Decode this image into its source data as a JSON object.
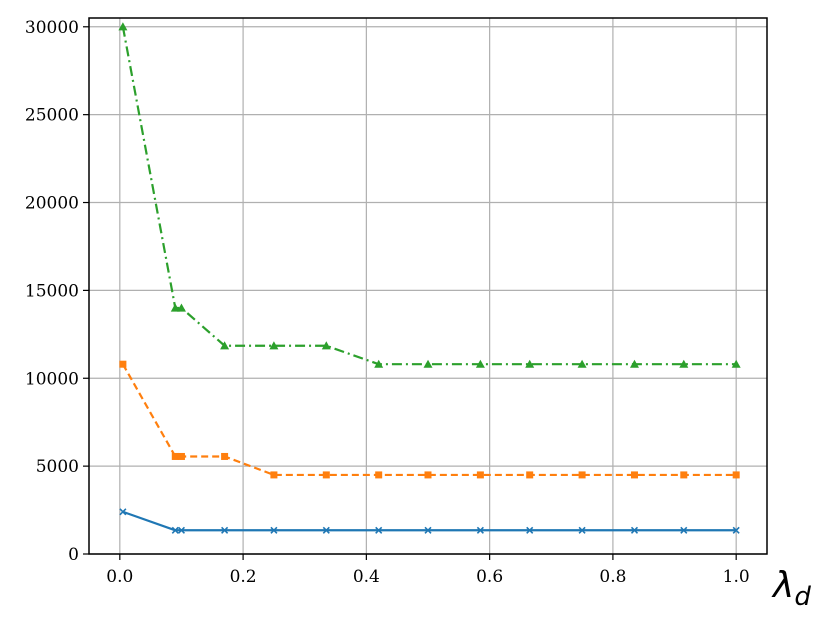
{
  "chart_data": {
    "type": "line",
    "xlabel": "λd",
    "xlabel_main": "λ",
    "xlabel_sub": "d",
    "ylabel": "",
    "title": "",
    "xlim": [
      -0.05,
      1.05
    ],
    "ylim": [
      0,
      30500
    ],
    "grid": true,
    "xticks": [
      0.0,
      0.2,
      0.4,
      0.6,
      0.8,
      1.0
    ],
    "xtick_labels": [
      "0.0",
      "0.2",
      "0.4",
      "0.6",
      "0.8",
      "1.0"
    ],
    "yticks": [
      0,
      5000,
      10000,
      15000,
      20000,
      25000,
      30000
    ],
    "ytick_labels": [
      "0",
      "5000",
      "10000",
      "15000",
      "20000",
      "25000",
      "30000"
    ],
    "series": [
      {
        "color": "#1f77b4",
        "linestyle": "solid",
        "marker": "x",
        "x": [
          0.005,
          0.09,
          0.1,
          0.17,
          0.25,
          0.335,
          0.42,
          0.5,
          0.585,
          0.665,
          0.75,
          0.835,
          0.915,
          1.0
        ],
        "values": [
          2400,
          1350,
          1350,
          1350,
          1350,
          1350,
          1350,
          1350,
          1350,
          1350,
          1350,
          1350,
          1350,
          1350
        ]
      },
      {
        "color": "#ff7f0e",
        "linestyle": "dashed",
        "marker": "s",
        "x": [
          0.005,
          0.09,
          0.1,
          0.17,
          0.25,
          0.335,
          0.42,
          0.5,
          0.585,
          0.665,
          0.75,
          0.835,
          0.915,
          1.0
        ],
        "values": [
          10800,
          5550,
          5550,
          5550,
          4500,
          4500,
          4500,
          4500,
          4500,
          4500,
          4500,
          4500,
          4500,
          4500
        ]
      },
      {
        "color": "#2ca02c",
        "linestyle": "dashdot",
        "marker": "^",
        "x": [
          0.005,
          0.09,
          0.1,
          0.17,
          0.25,
          0.335,
          0.42,
          0.5,
          0.585,
          0.665,
          0.75,
          0.835,
          0.915,
          1.0
        ],
        "values": [
          30000,
          14000,
          14000,
          11850,
          11850,
          11850,
          10800,
          10800,
          10800,
          10800,
          10800,
          10800,
          10800,
          10800
        ]
      }
    ]
  }
}
